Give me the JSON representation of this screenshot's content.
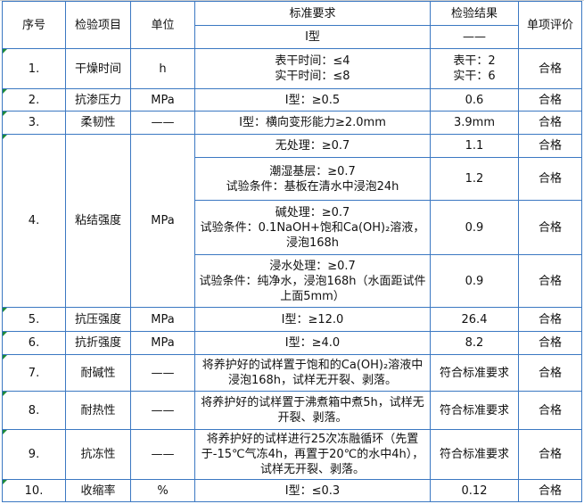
{
  "header": {
    "no": "序号",
    "item": "检验项目",
    "unit": "单位",
    "standard": "标准要求",
    "result": "检验结果",
    "evaluation": "单项评价",
    "standard_sub": "I型",
    "result_sub": "——"
  },
  "rows": [
    {
      "no": "1.",
      "item": "干燥时间",
      "unit": "h",
      "standard": "表干时间：≤4\n实干时间：≤8",
      "result": "表干：2\n实干：6",
      "evaluation": "合格"
    },
    {
      "no": "2.",
      "item": "抗渗压力",
      "unit": "MPa",
      "standard": "I型：≥0.5",
      "result": "0.6",
      "evaluation": "合格"
    },
    {
      "no": "3.",
      "item": "柔韧性",
      "unit": "——",
      "standard": "I型：横向变形能力≥2.0mm",
      "result": "3.9mm",
      "evaluation": "合格"
    },
    {
      "no": "4.",
      "item": "粘结强度",
      "unit": "MPa",
      "subrows": [
        {
          "standard": "无处理：≥0.7",
          "result": "1.1",
          "evaluation": "合格"
        },
        {
          "standard": "潮湿基层：≥0.7\n试验条件：基板在清水中浸泡24h",
          "result": "1.2",
          "evaluation": "合格"
        },
        {
          "standard": "碱处理：≥0.7\n试验条件：0.1NaOH+饱和Ca(OH)₂溶液，浸泡168h",
          "result": "0.9",
          "evaluation": "合格"
        },
        {
          "standard": "浸水处理：≥0.7\n试验条件：纯净水，浸泡168h（水面距试件上面5mm）",
          "result": "0.9",
          "evaluation": "合格"
        }
      ]
    },
    {
      "no": "5.",
      "item": "抗压强度",
      "unit": "MPa",
      "standard": "I型：≥12.0",
      "result": "26.4",
      "evaluation": "合格"
    },
    {
      "no": "6.",
      "item": "抗折强度",
      "unit": "MPa",
      "standard": "I型：≥4.0",
      "result": "8.2",
      "evaluation": "合格"
    },
    {
      "no": "7.",
      "item": "耐碱性",
      "unit": "——",
      "standard": "将养护好的试样置于饱和的Ca(OH)₂溶液中浸泡168h，试样无开裂、剥落。",
      "result": "符合标准要求",
      "evaluation": "合格"
    },
    {
      "no": "8.",
      "item": "耐热性",
      "unit": "——",
      "standard": "将养护好的试样置于沸煮箱中煮5h，试样无开裂、剥落。",
      "result": "符合标准要求",
      "evaluation": "合格"
    },
    {
      "no": "9.",
      "item": "抗冻性",
      "unit": "——",
      "standard": "将养护好的试样进行25次冻融循环（先置于-15℃气冻4h，再置于20℃的水中4h），试样无开裂、剥落。",
      "result": "符合标准要求",
      "evaluation": "合格"
    },
    {
      "no": "10.",
      "item": "收缩率",
      "unit": "%",
      "standard": "I型：≤0.3",
      "result": "0.12",
      "evaluation": "合格"
    }
  ]
}
